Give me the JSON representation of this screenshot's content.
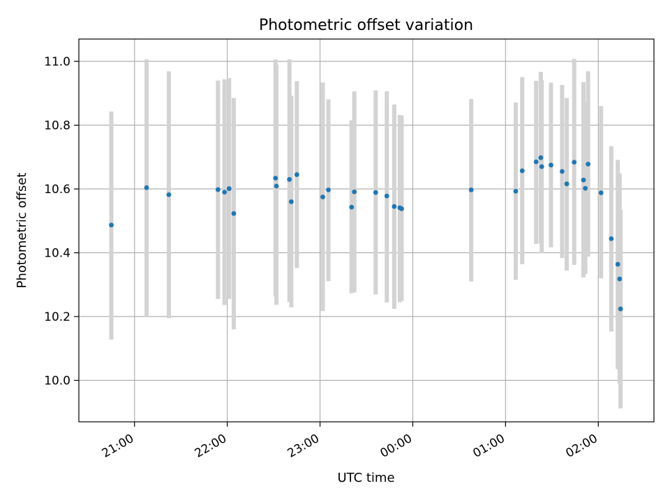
{
  "chart_data": {
    "type": "scatter",
    "title": "Photometric offset variation",
    "xlabel": "UTC time",
    "ylabel": "Photometric offset",
    "x_unit": "hours after 20:00 UTC",
    "xlim": [
      0.4,
      6.6
    ],
    "ylim": [
      9.87,
      11.07
    ],
    "grid": true,
    "x_ticks": [
      {
        "value": 1,
        "label": "21:00"
      },
      {
        "value": 2,
        "label": "22:00"
      },
      {
        "value": 3,
        "label": "23:00"
      },
      {
        "value": 4,
        "label": "00:00"
      },
      {
        "value": 5,
        "label": "01:00"
      },
      {
        "value": 6,
        "label": "02:00"
      }
    ],
    "y_ticks": [
      {
        "value": 10.0,
        "label": "10.0"
      },
      {
        "value": 10.2,
        "label": "10.2"
      },
      {
        "value": 10.4,
        "label": "10.4"
      },
      {
        "value": 10.6,
        "label": "10.6"
      },
      {
        "value": 10.8,
        "label": "10.8"
      },
      {
        "value": 11.0,
        "label": "11.0"
      }
    ],
    "colors": {
      "marker": "#1f77b4",
      "errorbar": "#d3d3d3",
      "grid": "#b0b0b0"
    },
    "points": [
      {
        "x": 0.75,
        "y": 10.487,
        "err_low": 10.128,
        "err_high": 10.843
      },
      {
        "x": 1.13,
        "y": 10.604,
        "err_low": 10.198,
        "err_high": 11.006
      },
      {
        "x": 1.37,
        "y": 10.582,
        "err_low": 10.195,
        "err_high": 10.969
      },
      {
        "x": 1.9,
        "y": 10.598,
        "err_low": 10.255,
        "err_high": 10.94
      },
      {
        "x": 1.97,
        "y": 10.59,
        "err_low": 10.236,
        "err_high": 10.944
      },
      {
        "x": 2.02,
        "y": 10.601,
        "err_low": 10.255,
        "err_high": 10.948
      },
      {
        "x": 2.07,
        "y": 10.523,
        "err_low": 10.16,
        "err_high": 10.885
      },
      {
        "x": 2.52,
        "y": 10.634,
        "err_low": 10.263,
        "err_high": 11.006
      },
      {
        "x": 2.53,
        "y": 10.609,
        "err_low": 10.237,
        "err_high": 10.99
      },
      {
        "x": 2.67,
        "y": 10.63,
        "err_low": 10.246,
        "err_high": 11.006
      },
      {
        "x": 2.69,
        "y": 10.56,
        "err_low": 10.229,
        "err_high": 10.892
      },
      {
        "x": 2.75,
        "y": 10.645,
        "err_low": 10.352,
        "err_high": 10.938
      },
      {
        "x": 3.03,
        "y": 10.575,
        "err_low": 10.217,
        "err_high": 10.934
      },
      {
        "x": 3.09,
        "y": 10.597,
        "err_low": 10.311,
        "err_high": 10.881
      },
      {
        "x": 3.34,
        "y": 10.543,
        "err_low": 10.273,
        "err_high": 10.815
      },
      {
        "x": 3.37,
        "y": 10.591,
        "err_low": 10.276,
        "err_high": 10.906
      },
      {
        "x": 3.6,
        "y": 10.589,
        "err_low": 10.269,
        "err_high": 10.909
      },
      {
        "x": 3.72,
        "y": 10.578,
        "err_low": 10.244,
        "err_high": 10.906
      },
      {
        "x": 3.8,
        "y": 10.545,
        "err_low": 10.224,
        "err_high": 10.865
      },
      {
        "x": 3.86,
        "y": 10.541,
        "err_low": 10.245,
        "err_high": 10.832
      },
      {
        "x": 3.88,
        "y": 10.538,
        "err_low": 10.249,
        "err_high": 10.83
      },
      {
        "x": 4.63,
        "y": 10.597,
        "err_low": 10.31,
        "err_high": 10.882
      },
      {
        "x": 5.11,
        "y": 10.593,
        "err_low": 10.315,
        "err_high": 10.871
      },
      {
        "x": 5.18,
        "y": 10.657,
        "err_low": 10.364,
        "err_high": 10.951
      },
      {
        "x": 5.33,
        "y": 10.685,
        "err_low": 10.428,
        "err_high": 10.939
      },
      {
        "x": 5.38,
        "y": 10.698,
        "err_low": 10.429,
        "err_high": 10.967
      },
      {
        "x": 5.39,
        "y": 10.67,
        "err_low": 10.399,
        "err_high": 10.941
      },
      {
        "x": 5.49,
        "y": 10.675,
        "err_low": 10.417,
        "err_high": 10.933
      },
      {
        "x": 5.61,
        "y": 10.655,
        "err_low": 10.384,
        "err_high": 10.926
      },
      {
        "x": 5.66,
        "y": 10.616,
        "err_low": 10.344,
        "err_high": 10.885
      },
      {
        "x": 5.74,
        "y": 10.684,
        "err_low": 10.362,
        "err_high": 11.008
      },
      {
        "x": 5.84,
        "y": 10.628,
        "err_low": 10.323,
        "err_high": 10.935
      },
      {
        "x": 5.86,
        "y": 10.602,
        "err_low": 10.333,
        "err_high": 10.873
      },
      {
        "x": 5.89,
        "y": 10.678,
        "err_low": 10.388,
        "err_high": 10.969
      },
      {
        "x": 6.03,
        "y": 10.588,
        "err_low": 10.32,
        "err_high": 10.86
      },
      {
        "x": 6.14,
        "y": 10.444,
        "err_low": 10.153,
        "err_high": 10.734
      },
      {
        "x": 6.21,
        "y": 10.364,
        "err_low": 10.035,
        "err_high": 10.691
      },
      {
        "x": 6.23,
        "y": 10.318,
        "err_low": 9.99,
        "err_high": 10.649
      },
      {
        "x": 6.24,
        "y": 10.224,
        "err_low": 9.912,
        "err_high": 10.535
      }
    ]
  }
}
